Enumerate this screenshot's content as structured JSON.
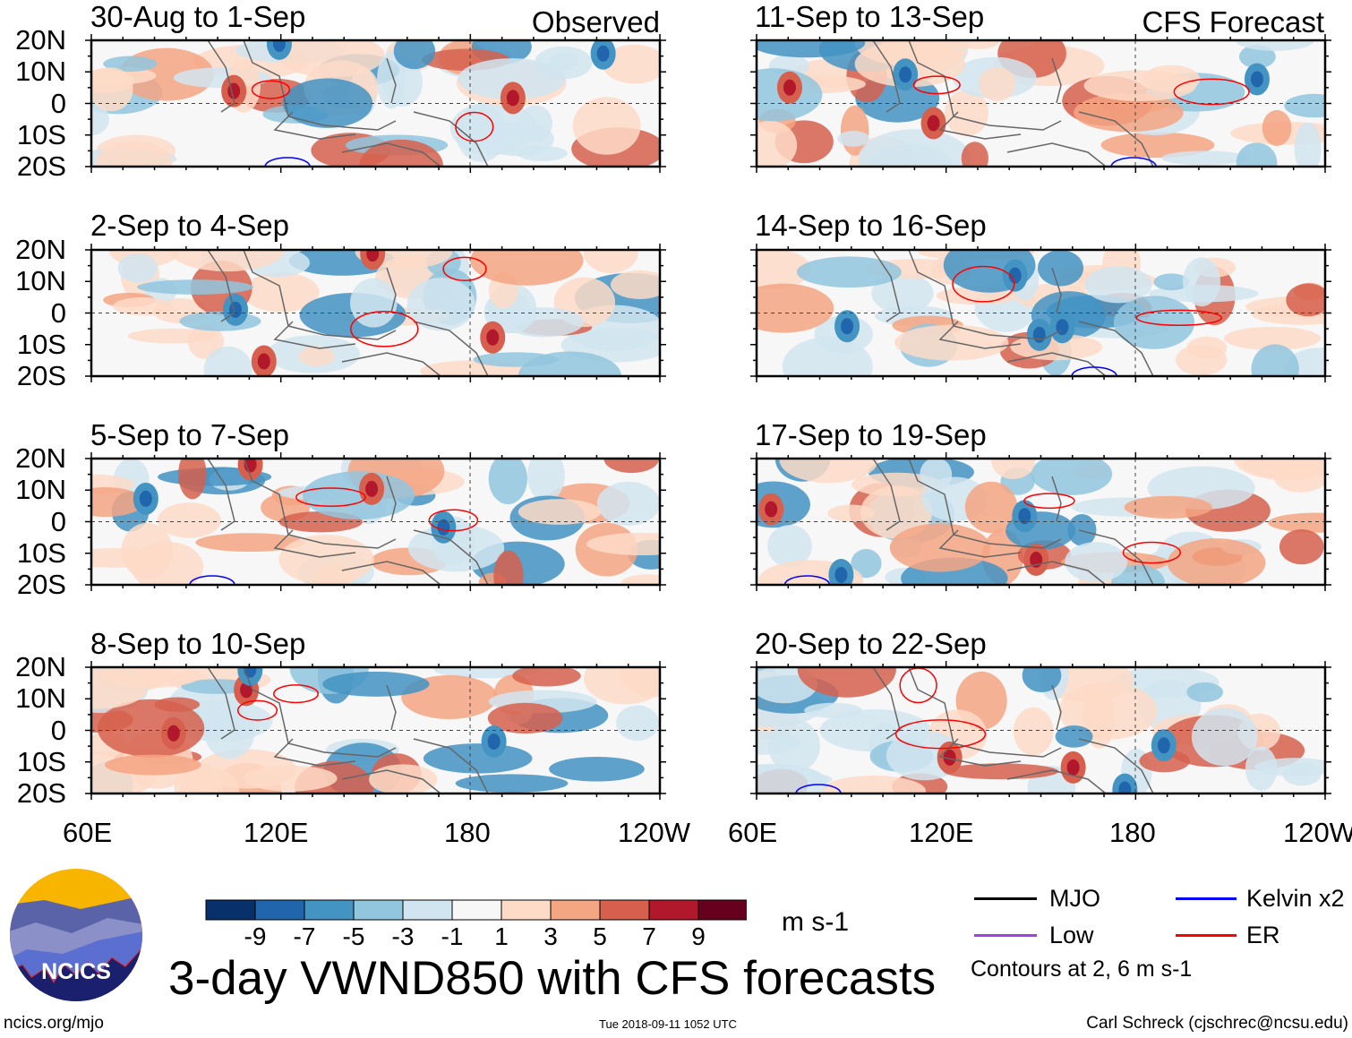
{
  "figure": {
    "title": "3-day VWND850 with CFS forecasts",
    "footer_left": "ncics.org/mjo",
    "timestamp": "Tue 2018-09-11 1052 UTC",
    "author": "Carl Schreck (cjschrec@ncsu.edu)",
    "logo_text": "NCICS",
    "observed_label": "Observed",
    "forecast_label": "CFS Forecast"
  },
  "panels": {
    "left": [
      {
        "title": "30-Aug to 1-Sep"
      },
      {
        "title": "2-Sep to 4-Sep"
      },
      {
        "title": "5-Sep to 7-Sep"
      },
      {
        "title": "8-Sep to 10-Sep"
      }
    ],
    "right": [
      {
        "title": "11-Sep to 13-Sep"
      },
      {
        "title": "14-Sep to 16-Sep"
      },
      {
        "title": "17-Sep to 19-Sep"
      },
      {
        "title": "20-Sep to 22-Sep"
      }
    ]
  },
  "axes": {
    "y_ticks": [
      "20N",
      "10N",
      "0",
      "10S",
      "20S"
    ],
    "x_ticks": [
      "60E",
      "120E",
      "180",
      "120W"
    ]
  },
  "colorbar": {
    "unit": "m s-1",
    "labels": [
      "-9",
      "-7",
      "-5",
      "-3",
      "-1",
      "1",
      "3",
      "5",
      "7",
      "9"
    ],
    "colors": [
      "#08306b",
      "#2166ac",
      "#4393c3",
      "#92c5de",
      "#d1e5f0",
      "#f7f7f7",
      "#fddbc7",
      "#f4a582",
      "#d6604d",
      "#b2182b",
      "#67001f"
    ]
  },
  "legend": {
    "items": [
      {
        "label": "MJO",
        "color": "#000000"
      },
      {
        "label": "Kelvin x2",
        "color": "#0000ff"
      },
      {
        "label": "Low",
        "color": "#a040e0"
      },
      {
        "label": "ER",
        "color": "#ff0000"
      }
    ],
    "note": "Contours at 2, 6 m s-1"
  }
}
